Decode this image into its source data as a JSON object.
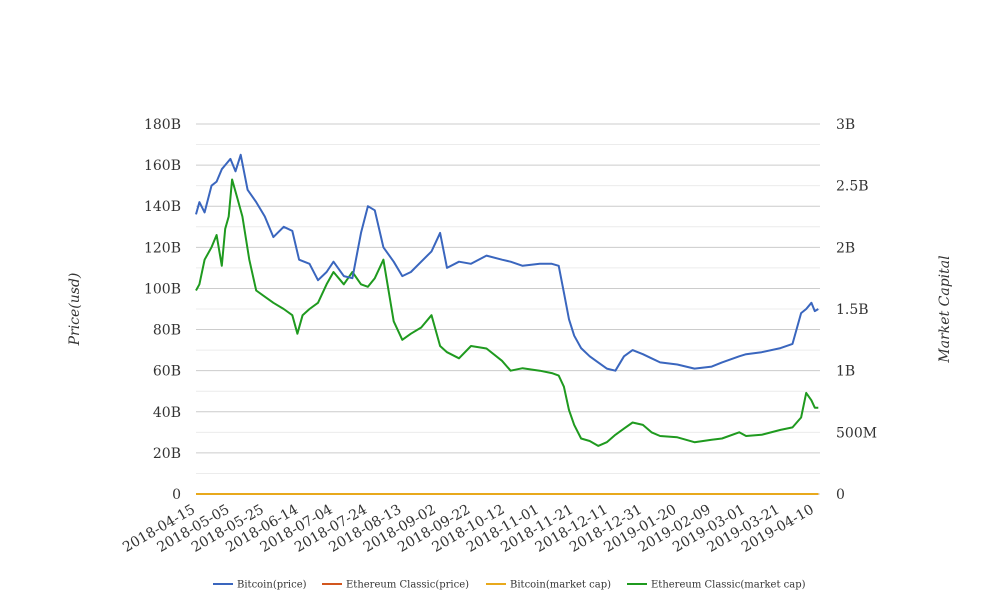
{
  "chart_data": {
    "type": "line",
    "ylabel_left": "Price(usd)",
    "ylabel_right": "Market Capital",
    "x_ticks": [
      "2018-04-15",
      "2018-05-05",
      "2018-05-25",
      "2018-06-14",
      "2018-07-04",
      "2018-07-24",
      "2018-08-13",
      "2018-09-02",
      "2018-09-22",
      "2018-10-12",
      "2018-11-01",
      "2018-11-21",
      "2018-12-11",
      "2018-12-31",
      "2019-01-20",
      "2019-02-09",
      "2019-03-01",
      "2019-03-21",
      "2019-04-10"
    ],
    "x_range": [
      "2018-04-15",
      "2019-04-13"
    ],
    "y_left": {
      "range": [
        0,
        180000000000
      ],
      "tick_values": [
        0,
        20000000000,
        40000000000,
        60000000000,
        80000000000,
        100000000000,
        120000000000,
        140000000000,
        160000000000,
        180000000000
      ],
      "tick_labels": [
        "0",
        "20B",
        "40B",
        "60B",
        "80B",
        "100B",
        "120B",
        "140B",
        "160B",
        "180B"
      ]
    },
    "y_right": {
      "range": [
        0,
        3000000000
      ],
      "tick_values": [
        0,
        500000000,
        1000000000,
        1500000000,
        2000000000,
        2500000000,
        3000000000
      ],
      "tick_labels": [
        "0",
        "500M",
        "1B",
        "1.5B",
        "2B",
        "2.5B",
        "3B"
      ]
    },
    "grid": true,
    "legend_position": "bottom",
    "series": [
      {
        "name": "Bitcoin(price)",
        "color": "#3a66be",
        "axis": "left",
        "x": [
          "2018-04-15",
          "2018-04-17",
          "2018-04-20",
          "2018-04-24",
          "2018-04-27",
          "2018-04-30",
          "2018-05-02",
          "2018-05-05",
          "2018-05-08",
          "2018-05-11",
          "2018-05-15",
          "2018-05-20",
          "2018-05-25",
          "2018-05-30",
          "2018-06-05",
          "2018-06-10",
          "2018-06-14",
          "2018-06-20",
          "2018-06-25",
          "2018-06-30",
          "2018-07-04",
          "2018-07-10",
          "2018-07-15",
          "2018-07-20",
          "2018-07-24",
          "2018-07-28",
          "2018-08-02",
          "2018-08-08",
          "2018-08-13",
          "2018-08-18",
          "2018-08-24",
          "2018-08-30",
          "2018-09-04",
          "2018-09-08",
          "2018-09-15",
          "2018-09-22",
          "2018-10-01",
          "2018-10-10",
          "2018-10-15",
          "2018-10-22",
          "2018-11-01",
          "2018-11-08",
          "2018-11-12",
          "2018-11-15",
          "2018-11-18",
          "2018-11-21",
          "2018-11-25",
          "2018-11-30",
          "2018-12-05",
          "2018-12-10",
          "2018-12-15",
          "2018-12-20",
          "2018-12-25",
          "2018-12-31",
          "2019-01-05",
          "2019-01-10",
          "2019-01-20",
          "2019-01-30",
          "2019-02-09",
          "2019-02-15",
          "2019-02-25",
          "2019-03-01",
          "2019-03-10",
          "2019-03-21",
          "2019-03-28",
          "2019-04-02",
          "2019-04-05",
          "2019-04-08",
          "2019-04-10",
          "2019-04-12"
        ],
        "y": [
          136000000000,
          142000000000,
          137000000000,
          150000000000,
          152000000000,
          158000000000,
          160000000000,
          163000000000,
          157000000000,
          165000000000,
          148000000000,
          142000000000,
          135000000000,
          125000000000,
          130000000000,
          128000000000,
          114000000000,
          112000000000,
          104000000000,
          108000000000,
          113000000000,
          106000000000,
          105000000000,
          127000000000,
          140000000000,
          138000000000,
          120000000000,
          113000000000,
          106000000000,
          108000000000,
          113000000000,
          118000000000,
          127000000000,
          110000000000,
          113000000000,
          112000000000,
          116000000000,
          114000000000,
          113000000000,
          111000000000,
          112000000000,
          112000000000,
          111000000000,
          98000000000,
          85000000000,
          77000000000,
          71000000000,
          67000000000,
          64000000000,
          61000000000,
          60000000000,
          67000000000,
          70000000000,
          68000000000,
          66000000000,
          64000000000,
          63000000000,
          61000000000,
          62000000000,
          64000000000,
          67000000000,
          68000000000,
          69000000000,
          71000000000,
          73000000000,
          88000000000,
          90000000000,
          93000000000,
          89000000000,
          90000000000
        ]
      },
      {
        "name": "Ethereum Classic(price)",
        "color": "#d2561e",
        "axis": "left",
        "x": [
          "2018-04-15",
          "2019-04-12"
        ],
        "y": [
          0,
          0
        ]
      },
      {
        "name": "Bitcoin(market cap)",
        "color": "#e8a91c",
        "axis": "right",
        "x": [
          "2018-04-15",
          "2019-04-12"
        ],
        "y": [
          0,
          0
        ]
      },
      {
        "name": "Ethereum Classic(market cap)",
        "color": "#1f9a1f",
        "axis": "right",
        "x": [
          "2018-04-15",
          "2018-04-17",
          "2018-04-20",
          "2018-04-24",
          "2018-04-27",
          "2018-04-30",
          "2018-05-02",
          "2018-05-04",
          "2018-05-06",
          "2018-05-09",
          "2018-05-12",
          "2018-05-16",
          "2018-05-20",
          "2018-05-25",
          "2018-05-30",
          "2018-06-05",
          "2018-06-10",
          "2018-06-13",
          "2018-06-16",
          "2018-06-20",
          "2018-06-25",
          "2018-06-30",
          "2018-07-04",
          "2018-07-10",
          "2018-07-15",
          "2018-07-20",
          "2018-07-24",
          "2018-07-28",
          "2018-08-02",
          "2018-08-08",
          "2018-08-13",
          "2018-08-18",
          "2018-08-24",
          "2018-08-30",
          "2018-09-04",
          "2018-09-08",
          "2018-09-15",
          "2018-09-22",
          "2018-10-01",
          "2018-10-10",
          "2018-10-15",
          "2018-10-22",
          "2018-11-01",
          "2018-11-08",
          "2018-11-12",
          "2018-11-15",
          "2018-11-18",
          "2018-11-21",
          "2018-11-25",
          "2018-11-30",
          "2018-12-05",
          "2018-12-10",
          "2018-12-15",
          "2018-12-20",
          "2018-12-25",
          "2018-12-31",
          "2019-01-05",
          "2019-01-10",
          "2019-01-20",
          "2019-01-30",
          "2019-02-09",
          "2019-02-15",
          "2019-02-25",
          "2019-03-01",
          "2019-03-10",
          "2019-03-21",
          "2019-03-28",
          "2019-04-02",
          "2019-04-05",
          "2019-04-08",
          "2019-04-10",
          "2019-04-12"
        ],
        "y": [
          1650000000,
          1700000000,
          1900000000,
          2000000000,
          2100000000,
          1850000000,
          2150000000,
          2250000000,
          2550000000,
          2400000000,
          2250000000,
          1900000000,
          1650000000,
          1600000000,
          1550000000,
          1500000000,
          1450000000,
          1300000000,
          1450000000,
          1500000000,
          1550000000,
          1700000000,
          1800000000,
          1700000000,
          1800000000,
          1700000000,
          1680000000,
          1750000000,
          1900000000,
          1400000000,
          1250000000,
          1300000000,
          1350000000,
          1450000000,
          1200000000,
          1150000000,
          1100000000,
          1200000000,
          1180000000,
          1080000000,
          1000000000,
          1020000000,
          1000000000,
          980000000,
          960000000,
          870000000,
          680000000,
          560000000,
          450000000,
          430000000,
          390000000,
          420000000,
          480000000,
          530000000,
          580000000,
          560000000,
          500000000,
          470000000,
          460000000,
          420000000,
          440000000,
          450000000,
          500000000,
          470000000,
          480000000,
          520000000,
          540000000,
          620000000,
          820000000,
          760000000,
          700000000,
          700000000
        ]
      }
    ]
  }
}
